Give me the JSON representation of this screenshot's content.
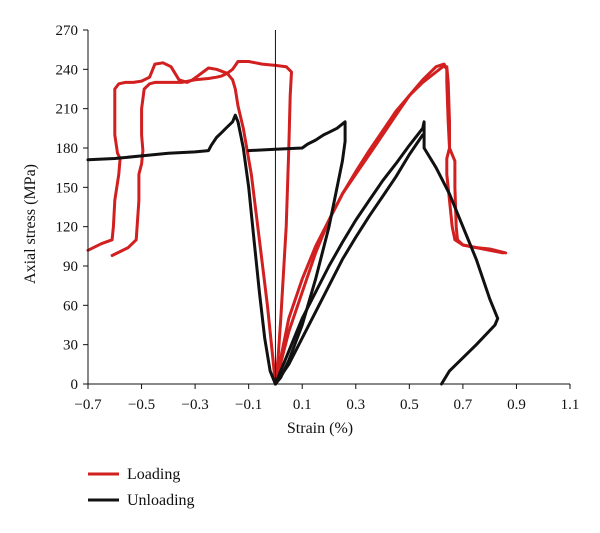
{
  "chart_data": {
    "type": "line",
    "xlabel": "Strain (%)",
    "ylabel": "Axial stress (MPa)",
    "xlim": [
      -0.7,
      1.1
    ],
    "ylim": [
      0,
      270
    ],
    "xticks": [
      -0.7,
      -0.5,
      -0.3,
      -0.1,
      0.1,
      0.3,
      0.5,
      0.7,
      0.9,
      1.1
    ],
    "xtick_labels": [
      "−0.7",
      "−0.5",
      "−0.3",
      "−0.1",
      "0.1",
      "0.3",
      "0.5",
      "0.7",
      "0.9",
      "1.1"
    ],
    "yticks": [
      0,
      30,
      60,
      90,
      120,
      150,
      180,
      210,
      240,
      270
    ],
    "ytick_labels": [
      "0",
      "30",
      "60",
      "90",
      "120",
      "150",
      "180",
      "210",
      "240",
      "270"
    ],
    "grid": false,
    "legend_position": "bottom-left",
    "series": [
      {
        "name": "Loading",
        "color": "#d21f1f",
        "segments": [
          [
            [
              0.0,
              0
            ],
            [
              -0.01,
              20
            ],
            [
              -0.03,
              60
            ],
            [
              -0.06,
              110
            ],
            [
              -0.09,
              160
            ],
            [
              -0.12,
              195
            ],
            [
              -0.14,
              212
            ],
            [
              -0.15,
              225
            ],
            [
              -0.16,
              232
            ],
            [
              -0.18,
              237
            ],
            [
              -0.22,
              240
            ],
            [
              -0.25,
              241
            ],
            [
              -0.27,
              238
            ],
            [
              -0.29,
              235
            ],
            [
              -0.31,
              232
            ],
            [
              -0.33,
              230
            ],
            [
              -0.36,
              232
            ],
            [
              -0.39,
              242
            ],
            [
              -0.42,
              245
            ],
            [
              -0.45,
              244
            ],
            [
              -0.47,
              234
            ],
            [
              -0.5,
              231
            ],
            [
              -0.53,
              230
            ],
            [
              -0.56,
              230
            ],
            [
              -0.585,
              229
            ],
            [
              -0.6,
              225
            ],
            [
              -0.6,
              190
            ],
            [
              -0.59,
              176
            ],
            [
              -0.58,
              172
            ],
            [
              -0.585,
              160
            ],
            [
              -0.6,
              140
            ],
            [
              -0.605,
              120
            ],
            [
              -0.61,
              110
            ],
            [
              -0.65,
              107
            ],
            [
              -0.7,
              102
            ]
          ],
          [
            [
              0.0,
              0
            ],
            [
              0.01,
              20
            ],
            [
              0.02,
              50
            ],
            [
              0.04,
              120
            ],
            [
              0.05,
              180
            ],
            [
              0.055,
              220
            ],
            [
              0.06,
              238
            ],
            [
              0.04,
              242
            ],
            [
              0.0,
              243
            ],
            [
              -0.05,
              244
            ],
            [
              -0.1,
              246
            ],
            [
              -0.14,
              246
            ],
            [
              -0.16,
              240
            ],
            [
              -0.18,
              237
            ],
            [
              -0.2,
              235
            ],
            [
              -0.22,
              234
            ],
            [
              -0.25,
              233
            ],
            [
              -0.3,
              232
            ],
            [
              -0.35,
              230
            ],
            [
              -0.39,
              230
            ],
            [
              -0.43,
              230
            ],
            [
              -0.45,
              230
            ],
            [
              -0.47,
              229
            ],
            [
              -0.49,
              225
            ],
            [
              -0.5,
              210
            ],
            [
              -0.5,
              190
            ],
            [
              -0.495,
              178
            ],
            [
              -0.5,
              168
            ],
            [
              -0.51,
              160
            ],
            [
              -0.51,
              140
            ],
            [
              -0.52,
              110
            ],
            [
              -0.55,
              104
            ],
            [
              -0.59,
              100
            ],
            [
              -0.61,
              98
            ]
          ],
          [
            [
              0.0,
              0
            ],
            [
              0.05,
              40
            ],
            [
              0.1,
              70
            ],
            [
              0.15,
              100
            ],
            [
              0.2,
              125
            ],
            [
              0.25,
              145
            ],
            [
              0.3,
              160
            ],
            [
              0.35,
              175
            ],
            [
              0.4,
              190
            ],
            [
              0.45,
              205
            ],
            [
              0.5,
              220
            ],
            [
              0.55,
              232
            ],
            [
              0.6,
              242
            ],
            [
              0.63,
              244
            ],
            [
              0.64,
              240
            ],
            [
              0.64,
              230
            ],
            [
              0.645,
              200
            ],
            [
              0.65,
              180
            ],
            [
              0.66,
              175
            ],
            [
              0.67,
              170
            ],
            [
              0.67,
              150
            ],
            [
              0.675,
              120
            ],
            [
              0.68,
              110
            ],
            [
              0.7,
              106
            ],
            [
              0.75,
              104
            ],
            [
              0.8,
              102
            ],
            [
              0.85,
              100
            ]
          ],
          [
            [
              0.0,
              0
            ],
            [
              0.05,
              50
            ],
            [
              0.1,
              80
            ],
            [
              0.15,
              105
            ],
            [
              0.2,
              125
            ],
            [
              0.25,
              145
            ],
            [
              0.3,
              162
            ],
            [
              0.35,
              178
            ],
            [
              0.4,
              193
            ],
            [
              0.45,
              208
            ],
            [
              0.5,
              220
            ],
            [
              0.55,
              230
            ],
            [
              0.6,
              238
            ],
            [
              0.625,
              242
            ],
            [
              0.64,
              242
            ],
            [
              0.645,
              230
            ],
            [
              0.65,
              200
            ],
            [
              0.65,
              180
            ],
            [
              0.64,
              172
            ],
            [
              0.64,
              160
            ],
            [
              0.65,
              140
            ],
            [
              0.66,
              120
            ],
            [
              0.67,
              110
            ],
            [
              0.7,
              106
            ],
            [
              0.75,
              104
            ],
            [
              0.8,
              103
            ],
            [
              0.86,
              100
            ]
          ]
        ]
      },
      {
        "name": "Unloading",
        "color": "#111111",
        "segments": [
          [
            [
              -0.7,
              171
            ],
            [
              -0.6,
              172
            ],
            [
              -0.5,
              174
            ],
            [
              -0.4,
              176
            ],
            [
              -0.3,
              177
            ],
            [
              -0.25,
              178
            ],
            [
              -0.24,
              182
            ],
            [
              -0.22,
              188
            ],
            [
              -0.2,
              192
            ],
            [
              -0.18,
              196
            ],
            [
              -0.16,
              200
            ],
            [
              -0.15,
              205
            ],
            [
              -0.14,
              200
            ],
            [
              -0.12,
              180
            ],
            [
              -0.1,
              150
            ],
            [
              -0.08,
              110
            ],
            [
              -0.06,
              70
            ],
            [
              -0.04,
              35
            ],
            [
              -0.02,
              10
            ],
            [
              0.0,
              0
            ]
          ],
          [
            [
              -0.1,
              178
            ],
            [
              0.0,
              179
            ],
            [
              0.1,
              180
            ],
            [
              0.12,
              183
            ],
            [
              0.15,
              186
            ],
            [
              0.18,
              190
            ],
            [
              0.2,
              192
            ],
            [
              0.23,
              195
            ],
            [
              0.26,
              200
            ],
            [
              0.26,
              185
            ],
            [
              0.25,
              170
            ],
            [
              0.22,
              140
            ],
            [
              0.2,
              120
            ],
            [
              0.15,
              80
            ],
            [
              0.1,
              45
            ],
            [
              0.05,
              18
            ],
            [
              0.02,
              5
            ],
            [
              0.0,
              0
            ]
          ],
          [
            [
              0.0,
              0
            ],
            [
              0.05,
              25
            ],
            [
              0.1,
              50
            ],
            [
              0.15,
              70
            ],
            [
              0.2,
              90
            ],
            [
              0.25,
              108
            ],
            [
              0.3,
              125
            ],
            [
              0.35,
              140
            ],
            [
              0.4,
              155
            ],
            [
              0.45,
              168
            ],
            [
              0.5,
              182
            ],
            [
              0.55,
              195
            ],
            [
              0.555,
              200
            ],
            [
              0.555,
              190
            ],
            [
              0.555,
              180
            ],
            [
              0.6,
              165
            ],
            [
              0.65,
              145
            ],
            [
              0.7,
              120
            ],
            [
              0.75,
              95
            ],
            [
              0.8,
              65
            ],
            [
              0.83,
              50
            ],
            [
              0.82,
              45
            ],
            [
              0.75,
              30
            ],
            [
              0.7,
              20
            ],
            [
              0.65,
              10
            ],
            [
              0.62,
              0
            ]
          ],
          [
            [
              0.0,
              0
            ],
            [
              0.05,
              15
            ],
            [
              0.1,
              35
            ],
            [
              0.15,
              55
            ],
            [
              0.2,
              75
            ],
            [
              0.25,
              95
            ],
            [
              0.3,
              112
            ],
            [
              0.35,
              128
            ],
            [
              0.4,
              143
            ],
            [
              0.45,
              158
            ],
            [
              0.5,
              175
            ],
            [
              0.55,
              190
            ]
          ]
        ]
      }
    ]
  },
  "legend": {
    "items": [
      {
        "label": "Loading",
        "color": "#d21f1f"
      },
      {
        "label": "Unloading",
        "color": "#111111"
      }
    ]
  }
}
